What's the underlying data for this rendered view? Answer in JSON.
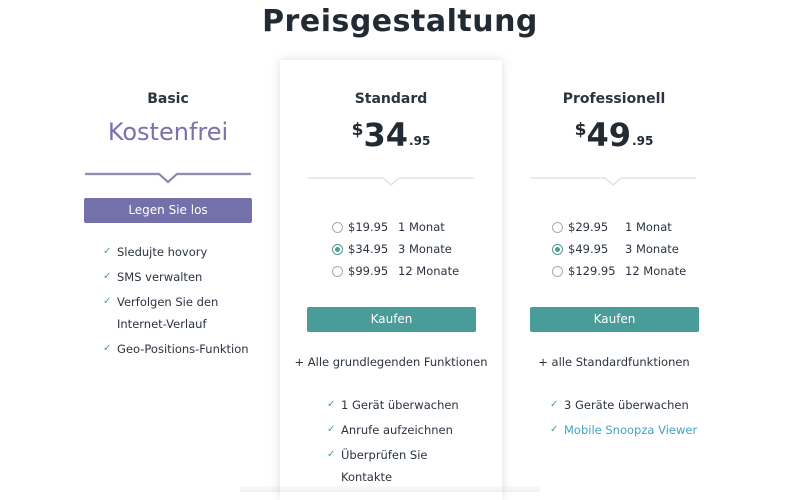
{
  "page": {
    "title": "Preisgestaltung"
  },
  "plans": {
    "basic": {
      "name": "Basic",
      "price_text": "Kostenfrei",
      "button_label": "Legen Sie los",
      "features": [
        "Sledujte hovory",
        "SMS verwalten",
        "Verfolgen Sie den Internet-Verlauf",
        "Geo-Positions-Funktion"
      ]
    },
    "standard": {
      "name": "Standard",
      "currency": "$",
      "price_whole": "34",
      "price_cents": ".95",
      "options": [
        {
          "price": "$19.95",
          "term": "1 Monat",
          "selected": false
        },
        {
          "price": "$34.95",
          "term": "3 Monate",
          "selected": true
        },
        {
          "price": "$99.95",
          "term": "12 Monate",
          "selected": false
        }
      ],
      "button_label": "Kaufen",
      "plus_text": "+ Alle grundlegenden Funktionen",
      "features": [
        "1 Gerät überwachen",
        "Anrufe aufzeichnen",
        "Überprüfen Sie Kontakte"
      ]
    },
    "professional": {
      "name": "Professionell",
      "currency": "$",
      "price_whole": "49",
      "price_cents": ".95",
      "options": [
        {
          "price": "$29.95",
          "term": "1 Monat",
          "selected": false
        },
        {
          "price": "$49.95",
          "term": "3 Monate",
          "selected": true
        },
        {
          "price": "$129.95",
          "term": "12 Monate",
          "selected": false
        }
      ],
      "button_label": "Kaufen",
      "plus_text": "+ alle Standardfunktionen",
      "features": [
        "3 Geräte überwachen"
      ],
      "link_feature": "Mobile Snoopza Viewer"
    }
  },
  "colors": {
    "accent_teal": "#4a9c98",
    "accent_purple": "#7470a9",
    "link_blue": "#3fa4c6"
  },
  "icons": {
    "check": "check-icon",
    "radio": "radio-icon"
  }
}
